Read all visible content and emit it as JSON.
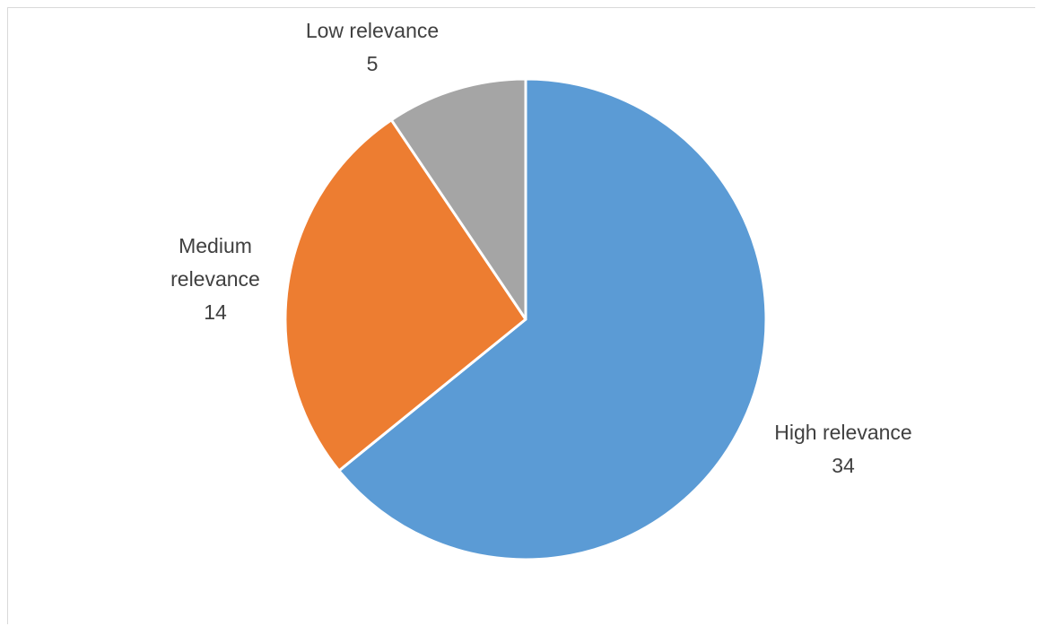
{
  "chart_data": {
    "type": "pie",
    "categories": [
      "High relevance",
      "Medium relevance",
      "Low relevance"
    ],
    "values": [
      34,
      14,
      5
    ],
    "colors": [
      "#5b9bd5",
      "#ed7d31",
      "#a5a5a5"
    ],
    "label_lines": [
      [
        "High relevance",
        "34"
      ],
      [
        "Medium",
        "relevance",
        "14"
      ],
      [
        "Low relevance",
        "5"
      ]
    ],
    "start_angle_deg": 0,
    "direction": "clockwise",
    "legend": "none"
  }
}
